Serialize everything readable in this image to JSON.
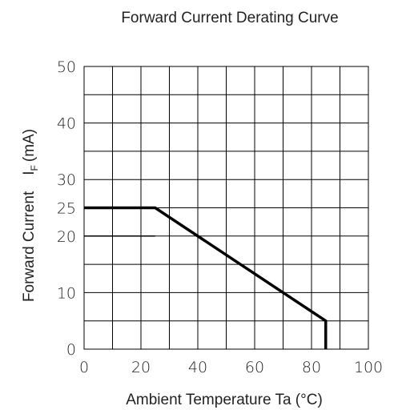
{
  "chart_data": {
    "type": "line",
    "title": "Forward Current Derating Curve",
    "xlabel": "Ambient Temperature Ta (°C)",
    "ylabel": "Forward Current",
    "ylabel_symbol": "I",
    "ylabel_subscript": "F",
    "ylabel_unit": "(mA)",
    "xlim": [
      0,
      100
    ],
    "ylim": [
      0,
      50
    ],
    "x_ticks": [
      "0",
      "20",
      "40",
      "60",
      "80",
      "100"
    ],
    "y_ticks": [
      "0",
      "10",
      "20",
      "25",
      "30",
      "40",
      "50"
    ],
    "grid": true,
    "series": [
      {
        "x": [
          0,
          25,
          85,
          85
        ],
        "y": [
          25,
          25,
          5,
          0
        ]
      }
    ],
    "annotations": [
      {
        "type": "reference-line",
        "x": [
          0,
          25
        ],
        "y": [
          20,
          20
        ]
      }
    ]
  }
}
